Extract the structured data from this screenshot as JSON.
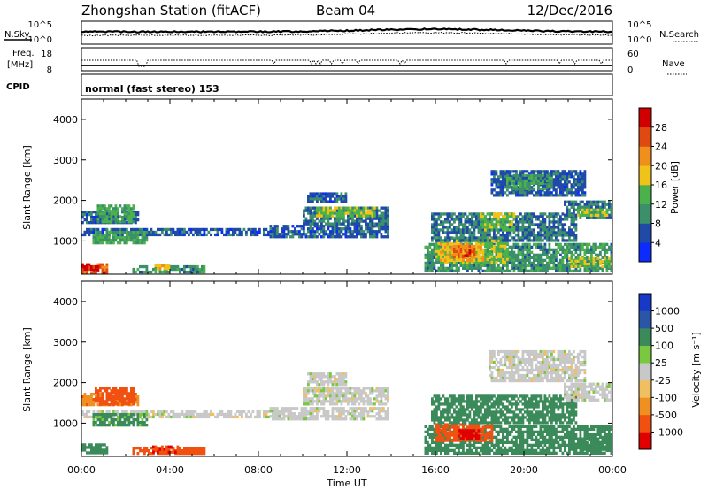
{
  "header": {
    "title": "Zhongshan Station (fitACF)",
    "beam": "Beam 04",
    "date": "12/Dec/2016"
  },
  "strips": {
    "nsky_label": "N.Sky",
    "nsearch_label": "N.Search",
    "noise_ticks": [
      "10^5",
      "10^0"
    ],
    "freq_label_line1": "Freq.",
    "freq_label_line2": "[MHz]",
    "freq_ticks": [
      "18",
      "8"
    ],
    "nave_label": "Nave",
    "nave_ticks": [
      "60",
      "0"
    ],
    "cpid_label": "CPID",
    "cpid_text": "normal (fast stereo) 153"
  },
  "colors": {
    "power_scale": [
      "#0b2bff",
      "#1f4aa8",
      "#3b8f6a",
      "#4bb24b",
      "#f0c31a",
      "#f0901a",
      "#e04a10",
      "#d00000"
    ],
    "velocity_scale": [
      "#e00000",
      "#f05010",
      "#f09020",
      "#f0c060",
      "#c8c8c8",
      "#7ac840",
      "#3a8a5a",
      "#2a56a8",
      "#1838c8"
    ],
    "ground_scatter": "#c8c8c8"
  },
  "chart_data": [
    {
      "type": "heatmap",
      "name": "power",
      "title": "",
      "xlabel": "",
      "ylabel": "Slant Range [km]",
      "xlim": [
        "00:00",
        "24:00"
      ],
      "ylim": [
        180,
        4500
      ],
      "x_ticks": [
        "00:00",
        "04:00",
        "08:00",
        "12:00",
        "16:00",
        "20:00",
        "00:00"
      ],
      "y_ticks": [
        1000,
        2000,
        3000,
        4000
      ],
      "colorbar": {
        "label": "Power [dB]",
        "ticks": [
          4,
          8,
          12,
          16,
          20,
          24,
          28
        ],
        "range": [
          0,
          30
        ]
      },
      "regions": [
        {
          "t": [
            0.0,
            2.6
          ],
          "r": [
            1450,
            1750
          ],
          "v": 6
        },
        {
          "t": [
            0.7,
            2.4
          ],
          "r": [
            1500,
            1900
          ],
          "v": 12
        },
        {
          "t": [
            0.0,
            8.5
          ],
          "r": [
            1150,
            1320
          ],
          "v": 6
        },
        {
          "t": [
            0.5,
            3.0
          ],
          "r": [
            950,
            1250
          ],
          "v": 11
        },
        {
          "t": [
            0.0,
            1.2
          ],
          "r": [
            250,
            450
          ],
          "v": 24
        },
        {
          "t": [
            0.0,
            0.9
          ],
          "r": [
            280,
            400
          ],
          "v": 28
        },
        {
          "t": [
            2.3,
            5.6
          ],
          "r": [
            250,
            400
          ],
          "v": 10
        },
        {
          "t": [
            3.3,
            4.0
          ],
          "r": [
            320,
            420
          ],
          "v": 18
        },
        {
          "t": [
            8.5,
            13.8
          ],
          "r": [
            1100,
            1400
          ],
          "v": 6
        },
        {
          "t": [
            10.0,
            13.8
          ],
          "r": [
            1450,
            1850
          ],
          "v": 8
        },
        {
          "t": [
            10.6,
            13.3
          ],
          "r": [
            1650,
            1850
          ],
          "v": 14
        },
        {
          "t": [
            10.2,
            12.0
          ],
          "r": [
            1950,
            2200
          ],
          "v": 6
        },
        {
          "t": [
            15.5,
            24.0
          ],
          "r": [
            250,
            950
          ],
          "v": 10
        },
        {
          "t": [
            16.0,
            19.3
          ],
          "r": [
            500,
            1100
          ],
          "v": 14
        },
        {
          "t": [
            16.2,
            18.2
          ],
          "r": [
            550,
            950
          ],
          "v": 18
        },
        {
          "t": [
            16.8,
            17.8
          ],
          "r": [
            600,
            900
          ],
          "v": 22
        },
        {
          "t": [
            17.2,
            17.6
          ],
          "r": [
            650,
            800
          ],
          "v": 26
        },
        {
          "t": [
            15.8,
            22.4
          ],
          "r": [
            1000,
            1700
          ],
          "v": 8
        },
        {
          "t": [
            18.0,
            19.6
          ],
          "r": [
            1250,
            1700
          ],
          "v": 14
        },
        {
          "t": [
            18.5,
            22.8
          ],
          "r": [
            2100,
            2750
          ],
          "v": 6
        },
        {
          "t": [
            19.2,
            21.3
          ],
          "r": [
            2300,
            2650
          ],
          "v": 10
        },
        {
          "t": [
            21.8,
            24.0
          ],
          "r": [
            1550,
            2000
          ],
          "v": 8
        },
        {
          "t": [
            22.4,
            23.8
          ],
          "r": [
            1650,
            1800
          ],
          "v": 14
        },
        {
          "t": [
            22.0,
            24.0
          ],
          "r": [
            350,
            600
          ],
          "v": 14
        }
      ]
    },
    {
      "type": "heatmap",
      "name": "velocity",
      "title": "",
      "xlabel": "Time UT",
      "ylabel": "Slant Range [km]",
      "xlim": [
        "00:00",
        "24:00"
      ],
      "ylim": [
        180,
        4500
      ],
      "x_ticks": [
        "00:00",
        "04:00",
        "08:00",
        "12:00",
        "16:00",
        "20:00",
        "00:00"
      ],
      "y_ticks": [
        1000,
        2000,
        3000,
        4000
      ],
      "colorbar": {
        "label": "Velocity [m s⁻¹]",
        "ticks": [
          "1000",
          "500",
          "100",
          "25",
          "-25",
          "-100",
          "-500",
          "-1000"
        ],
        "range": [
          -1200,
          1200
        ]
      },
      "regions": [
        {
          "t": [
            0.0,
            2.6
          ],
          "r": [
            1450,
            1750
          ],
          "v": -80
        },
        {
          "t": [
            0.6,
            2.4
          ],
          "r": [
            1500,
            1900
          ],
          "v": -300
        },
        {
          "t": [
            0.0,
            8.5
          ],
          "r": [
            1150,
            1320
          ],
          "v": 0
        },
        {
          "t": [
            0.5,
            3.0
          ],
          "r": [
            950,
            1250
          ],
          "v": 120
        },
        {
          "t": [
            0.0,
            1.2
          ],
          "r": [
            250,
            500
          ],
          "v": 200
        },
        {
          "t": [
            2.3,
            5.6
          ],
          "r": [
            250,
            420
          ],
          "v": -300
        },
        {
          "t": [
            3.2,
            4.4
          ],
          "r": [
            300,
            450
          ],
          "v": -500
        },
        {
          "t": [
            8.5,
            13.8
          ],
          "r": [
            1100,
            1400
          ],
          "v": 0
        },
        {
          "t": [
            10.0,
            13.8
          ],
          "r": [
            1450,
            1900
          ],
          "v": 0
        },
        {
          "t": [
            10.2,
            12.0
          ],
          "r": [
            1950,
            2250
          ],
          "v": 0
        },
        {
          "t": [
            15.5,
            24.0
          ],
          "r": [
            250,
            950
          ],
          "v": 200
        },
        {
          "t": [
            16.0,
            18.6
          ],
          "r": [
            550,
            1000
          ],
          "v": -350
        },
        {
          "t": [
            17.0,
            18.0
          ],
          "r": [
            600,
            850
          ],
          "v": -600
        },
        {
          "t": [
            15.8,
            22.4
          ],
          "r": [
            1000,
            1700
          ],
          "v": 220
        },
        {
          "t": [
            18.4,
            22.8
          ],
          "r": [
            2050,
            2800
          ],
          "v": 0
        },
        {
          "t": [
            21.8,
            24.0
          ],
          "r": [
            1550,
            2000
          ],
          "v": 0
        },
        {
          "t": [
            22.0,
            24.0
          ],
          "r": [
            350,
            650
          ],
          "v": 400
        }
      ]
    }
  ]
}
